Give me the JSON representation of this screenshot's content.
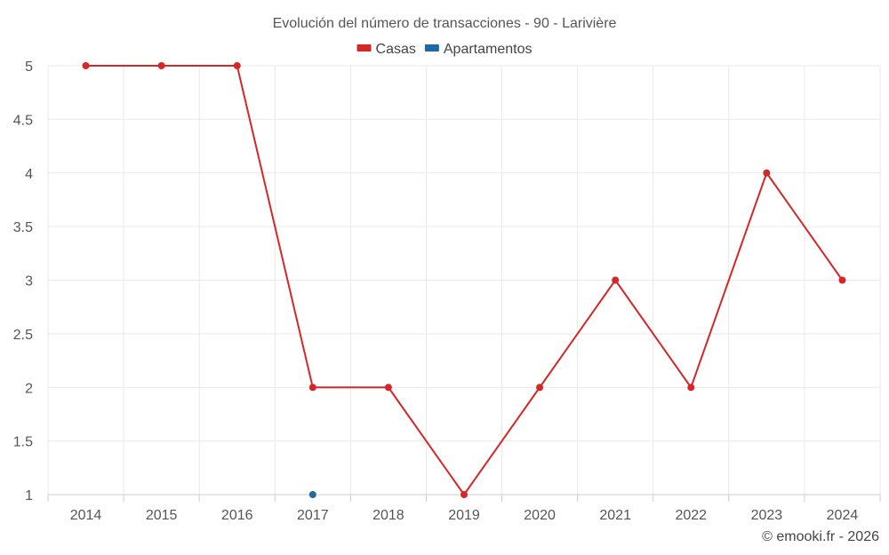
{
  "chart_data": {
    "type": "line",
    "title": "Evolución del número de transacciones - 90 - Larivière",
    "categories": [
      "2014",
      "2015",
      "2016",
      "2017",
      "2018",
      "2019",
      "2020",
      "2021",
      "2022",
      "2023",
      "2024"
    ],
    "series": [
      {
        "name": "Casas",
        "color": "#d62728",
        "values": [
          5,
          5,
          5,
          2,
          2,
          1,
          2,
          3,
          2,
          4,
          3
        ]
      },
      {
        "name": "Apartamentos",
        "color": "#1f6aa5",
        "values": [
          null,
          null,
          null,
          1,
          null,
          null,
          null,
          null,
          null,
          null,
          null
        ]
      }
    ],
    "y_ticks": [
      "1",
      "1.5",
      "2",
      "2.5",
      "3",
      "3.5",
      "4",
      "4.5",
      "5"
    ],
    "ylim": [
      1,
      5
    ],
    "xlabel": "",
    "ylabel": "",
    "grid": true,
    "legend": "top-center"
  },
  "footer": {
    "credit": "© emooki.fr - 2026"
  }
}
